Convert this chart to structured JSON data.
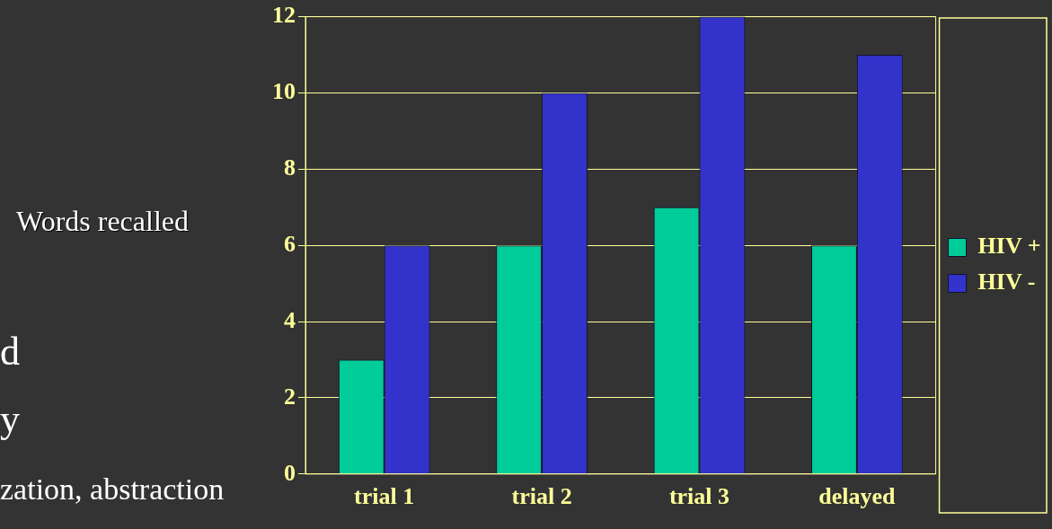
{
  "chart_data": {
    "type": "bar",
    "ylabel": "Words recalled",
    "categories": [
      "trial 1",
      "trial 2",
      "trial 3",
      "delayed"
    ],
    "series": [
      {
        "name": "HIV +",
        "color": "#00cc99",
        "values": [
          3,
          6,
          7,
          6
        ]
      },
      {
        "name": "HIV -",
        "color": "#3333cc",
        "values": [
          6,
          10,
          12,
          11
        ]
      }
    ],
    "ylim": [
      0,
      12
    ],
    "yticks": [
      0,
      2,
      4,
      6,
      8,
      10,
      12
    ],
    "grid": "y",
    "legend": "right",
    "annotations": [
      "d",
      "y",
      "zation, abstraction"
    ]
  }
}
